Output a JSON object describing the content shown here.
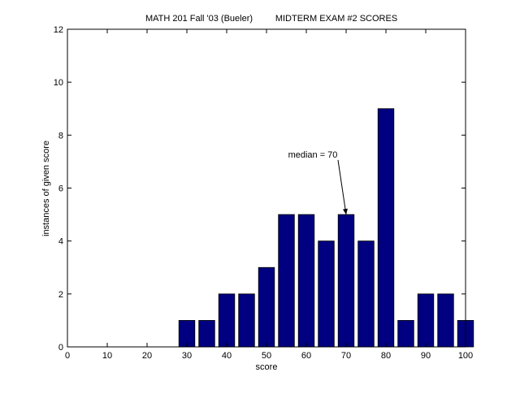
{
  "colors": {
    "bar_fill": "#000080",
    "bar_edge": "#000000",
    "axes": "#000000",
    "background": "#ffffff"
  },
  "chart_data": {
    "type": "bar",
    "title_left": "MATH 201 Fall '03 (Bueler)",
    "title_right": "MIDTERM EXAM #2 SCORES",
    "xlabel": "score",
    "ylabel": "instances of given score",
    "xlim": [
      0,
      100
    ],
    "ylim": [
      0,
      12
    ],
    "xticks": [
      0,
      10,
      20,
      30,
      40,
      50,
      60,
      70,
      80,
      90,
      100
    ],
    "yticks": [
      0,
      2,
      4,
      6,
      8,
      10,
      12
    ],
    "grid": false,
    "bar_width": 4,
    "x": [
      30,
      35,
      40,
      45,
      50,
      55,
      60,
      65,
      70,
      75,
      80,
      85,
      90,
      95,
      100
    ],
    "values": [
      1,
      1,
      2,
      2,
      3,
      5,
      5,
      4,
      5,
      4,
      9,
      1,
      2,
      2,
      1
    ],
    "annotation": {
      "text": "median = 70",
      "x": 70,
      "y": 5,
      "arrow": true
    }
  }
}
